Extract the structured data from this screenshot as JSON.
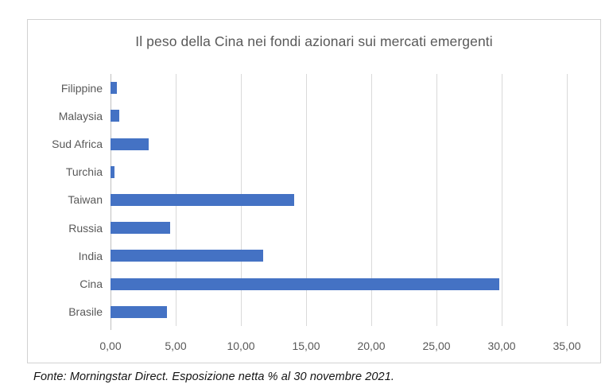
{
  "chart_data": {
    "type": "bar",
    "orientation": "horizontal",
    "title": "Il peso della Cina nei fondi azionari sui mercati emergenti",
    "categories": [
      "Filippine",
      "Malaysia",
      "Sud Africa",
      "Turchia",
      "Taiwan",
      "Russia",
      "India",
      "Cina",
      "Brasile"
    ],
    "values": [
      0.5,
      0.7,
      2.9,
      0.3,
      14.1,
      4.6,
      11.7,
      29.8,
      4.3
    ],
    "xlabel": "",
    "ylabel": "",
    "xlim": [
      0,
      35
    ],
    "x_ticks": [
      0,
      5,
      10,
      15,
      20,
      25,
      30,
      35
    ],
    "x_tick_labels": [
      "0,00",
      "5,00",
      "10,00",
      "15,00",
      "20,00",
      "25,00",
      "30,00",
      "35,00"
    ],
    "grid": "vertical-on",
    "legend": "none",
    "colors": {
      "bar": "#4472C4",
      "gridline": "#d9d9d9",
      "axis_line": "#bfbfbf",
      "labels": "#595959",
      "title": "#595959",
      "border": "#d2d2d2"
    }
  },
  "footer": {
    "text": "Fonte: Morningstar Direct. Esposizione netta % al 30 novembre 2021."
  }
}
